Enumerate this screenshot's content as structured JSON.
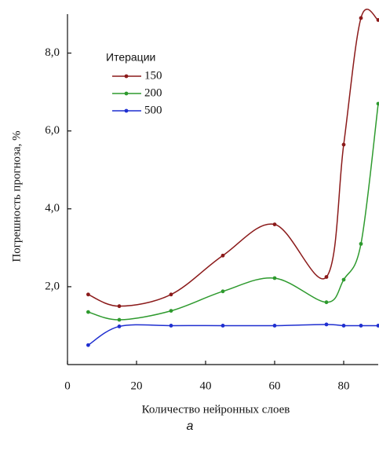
{
  "chart_data": {
    "type": "line",
    "x_label": "Количество нейронных слоев",
    "y_label": "Погрешность прогноза,    %",
    "caption": "а",
    "legend_title": "Итерации",
    "xlim": [
      0,
      90
    ],
    "ylim": [
      0,
      9
    ],
    "xticks": [
      0,
      20,
      40,
      60,
      80
    ],
    "yticks": [
      {
        "value": 2,
        "label": "2,0"
      },
      {
        "value": 4,
        "label": "4,0"
      },
      {
        "value": 6,
        "label": "6,0"
      },
      {
        "value": 8,
        "label": "8,0"
      }
    ],
    "series": [
      {
        "name": "150",
        "color": "#8b1a1a",
        "x": [
          6,
          15,
          30,
          45,
          60,
          75,
          80,
          85,
          90
        ],
        "values": [
          1.8,
          1.5,
          1.8,
          2.8,
          3.6,
          2.25,
          5.65,
          8.9,
          8.85
        ]
      },
      {
        "name": "200",
        "color": "#2e9a2e",
        "x": [
          6,
          15,
          30,
          45,
          60,
          75,
          80,
          85,
          90
        ],
        "values": [
          1.35,
          1.15,
          1.38,
          1.88,
          2.22,
          1.6,
          2.18,
          3.1,
          6.7
        ]
      },
      {
        "name": "500",
        "color": "#1f2fd0",
        "x": [
          6,
          15,
          30,
          45,
          60,
          75,
          80,
          85,
          90
        ],
        "values": [
          0.5,
          0.98,
          1.0,
          1.0,
          1.0,
          1.03,
          1.0,
          1.0,
          1.0
        ]
      }
    ]
  }
}
